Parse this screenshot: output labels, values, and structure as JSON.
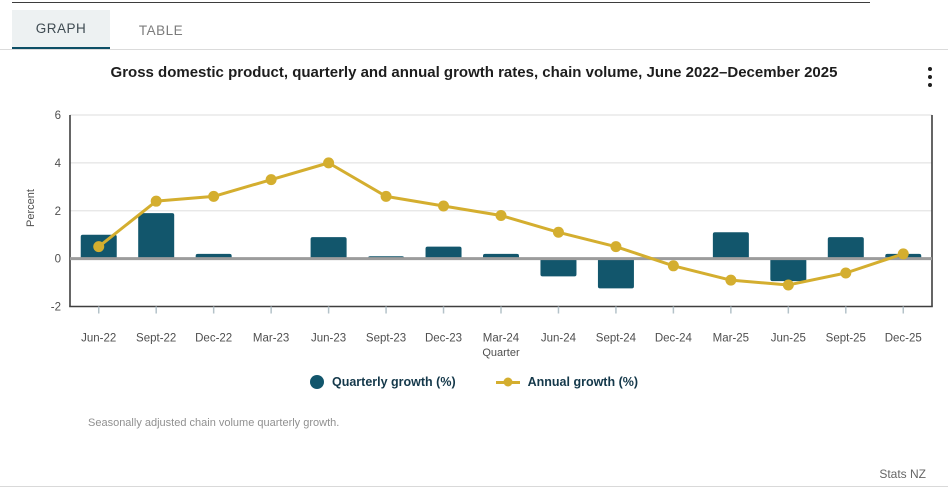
{
  "tabs": {
    "graph": "GRAPH",
    "table": "TABLE"
  },
  "note": "Seasonally adjusted chain volume quarterly growth.",
  "attribution": "Stats NZ",
  "colors": {
    "bar": "#12566c",
    "line": "#d4ae2f",
    "accent": "#0d4f66",
    "zero_line": "#9c9c9c",
    "grid": "#e4e4e4",
    "axis": "#3f3f3f",
    "tick": "#b4c2c9",
    "legend_text": "#14384a"
  },
  "chart_data": {
    "type": "bar",
    "title": "Gross domestic product, quarterly and annual growth rates, chain volume, June 2022–December 2025",
    "categories": [
      "Jun-22",
      "Sept-22",
      "Dec-22",
      "Mar-23",
      "Jun-23",
      "Sept-23",
      "Dec-23",
      "Mar-24",
      "Jun-24",
      "Sept-24",
      "Dec-24",
      "Mar-25",
      "Jun-25",
      "Sept-25",
      "Dec-25"
    ],
    "series": [
      {
        "name": "Quarterly growth (%)",
        "type": "bar",
        "values": [
          1.0,
          1.9,
          0.2,
          0.0,
          0.9,
          0.1,
          0.5,
          0.2,
          -0.7,
          -1.2,
          0.0,
          1.1,
          -0.9,
          0.9,
          0.2
        ]
      },
      {
        "name": "Annual growth (%)",
        "type": "line",
        "values": [
          0.5,
          2.4,
          2.6,
          3.3,
          4.0,
          2.6,
          2.2,
          1.8,
          1.1,
          0.5,
          -0.3,
          -0.9,
          -1.1,
          -0.6,
          0.2
        ]
      }
    ],
    "xlabel": "Quarter",
    "ylabel": "Percent",
    "ylim": [
      -2,
      6
    ],
    "yticks": [
      6,
      4,
      2,
      0,
      -2
    ],
    "grid": true,
    "legend_position": "bottom"
  }
}
